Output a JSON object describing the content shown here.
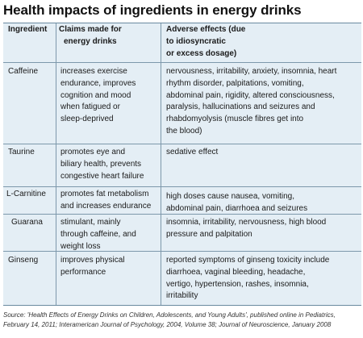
{
  "title": "Health impacts of ingredients in energy drinks",
  "header": {
    "ingredient": "Ingredient",
    "claims": [
      "Claims made for",
      "energy drinks"
    ],
    "effects": [
      "Adverse effects (due",
      "to idiosyncratic",
      "or excess dosage)"
    ]
  },
  "rows": [
    {
      "ingredient": "Caffeine",
      "claims": [
        "increases exercise",
        "endurance, improves",
        "cognition and mood",
        "when fatigued or",
        "sleep-deprived"
      ],
      "effects": [
        "nervousness, irritability, anxiety,  insomnia, heart",
        "rhythm disorder, palpitations, vomiting,",
        "abdominal pain, rigidity,  altered consciousness,",
        "paralysis, hallucinations and seizures and",
        "rhabdomyolysis (muscle fibres get into",
        "the blood)"
      ]
    },
    {
      "ingredient": "Taurine",
      "claims": [
        "promotes eye and",
        "biliary health, prevents",
        "congestive heart failure"
      ],
      "effects": [
        "sedative effect"
      ]
    },
    {
      "ingredient": "L-Carnitine",
      "claims": [
        "promotes fat metabolism",
        "and increases endurance"
      ],
      "effects": [
        "high doses cause nausea, vomiting,",
        "abdominal pain, diarrhoea and seizures"
      ]
    },
    {
      "ingredient": "Guarana",
      "claims": [
        "stimulant, mainly",
        "through caffeine, and",
        "weight loss"
      ],
      "effects": [
        "insomnia, irritability, nervousness, high blood",
        "pressure and palpitation"
      ]
    },
    {
      "ingredient": "Ginseng",
      "claims": [
        "improves physical",
        "performance"
      ],
      "effects": [
        "reported symptoms of ginseng toxicity include",
        "diarrhoea, vaginal bleeding, headache,",
        "vertigo, hypertension, rashes, insomnia,",
        "irritability"
      ]
    }
  ],
  "source": [
    "Source: 'Health Effects of Energy Drinks on Children, Adolescents, and Young Adults', published online in Pediatrics,",
    "February 14, 2011; Interamerican Journal of Psychology, 2004, Volume 38; Journal of Neuroscience, January 2008"
  ]
}
